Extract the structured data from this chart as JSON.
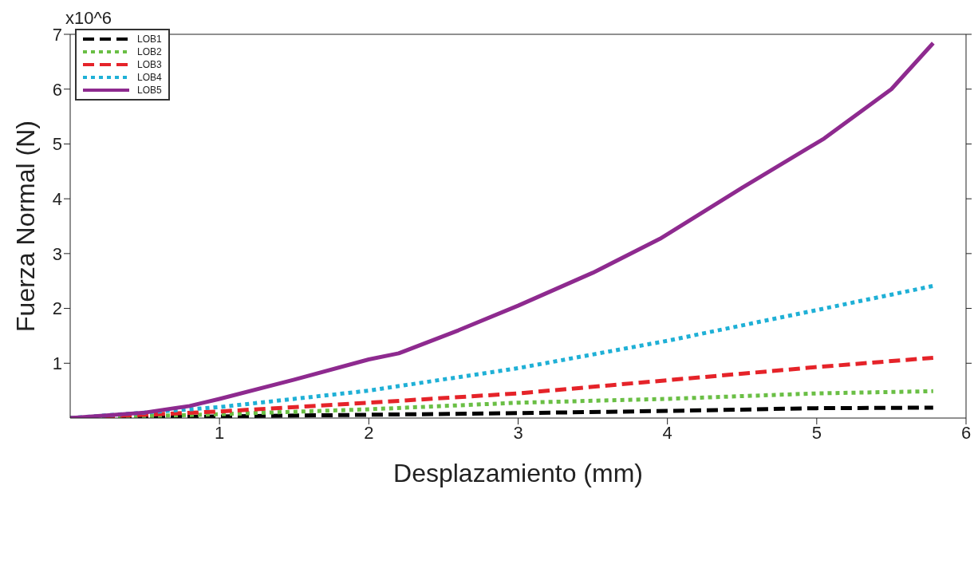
{
  "chart_data": {
    "type": "line",
    "xlabel": "Desplazamiento (mm)",
    "ylabel": "Fuerza Normal (N)",
    "annotations": [
      "x10^6"
    ],
    "xlim": [
      0,
      6
    ],
    "xticks": [
      1,
      2,
      3,
      4,
      5,
      6
    ],
    "ylim": [
      0,
      7
    ],
    "yticks": [
      1,
      2,
      3,
      4,
      5,
      6,
      7
    ],
    "legend": "top left",
    "series": [
      {
        "name": "LOB1",
        "color": "#000000",
        "line_style": "dashed",
        "x": [
          0,
          1,
          2,
          3,
          4,
          5,
          5.78
        ],
        "values": [
          0,
          0.03,
          0.06,
          0.09,
          0.13,
          0.18,
          0.19
        ]
      },
      {
        "name": "LOB2",
        "color": "#6abf45",
        "line_style": "dotted",
        "x": [
          0,
          1,
          2,
          3,
          4,
          5,
          5.78
        ],
        "values": [
          0,
          0.07,
          0.16,
          0.28,
          0.35,
          0.45,
          0.49
        ]
      },
      {
        "name": "LOB3",
        "color": "#e52329",
        "line_style": "dashed",
        "x": [
          0,
          1,
          2,
          3,
          4,
          5,
          5.78
        ],
        "values": [
          0,
          0.12,
          0.28,
          0.45,
          0.69,
          0.93,
          1.1
        ]
      },
      {
        "name": "LOB4",
        "color": "#1fb0d6",
        "line_style": "dotted",
        "x": [
          0,
          1,
          2,
          3,
          4,
          5,
          5.78
        ],
        "values": [
          0,
          0.2,
          0.5,
          0.91,
          1.41,
          1.97,
          2.41
        ]
      },
      {
        "name": "LOB5",
        "color": "#8e2a8f",
        "line_style": "solid",
        "x": [
          0,
          0.5,
          0.8,
          1,
          1.5,
          2,
          2.2,
          2.6,
          3,
          3.5,
          3.95,
          4.5,
          5.05,
          5.5,
          5.78
        ],
        "values": [
          0,
          0.1,
          0.22,
          0.35,
          0.7,
          1.07,
          1.18,
          1.6,
          2.05,
          2.65,
          3.27,
          4.2,
          5.1,
          6.0,
          6.84
        ]
      }
    ]
  }
}
